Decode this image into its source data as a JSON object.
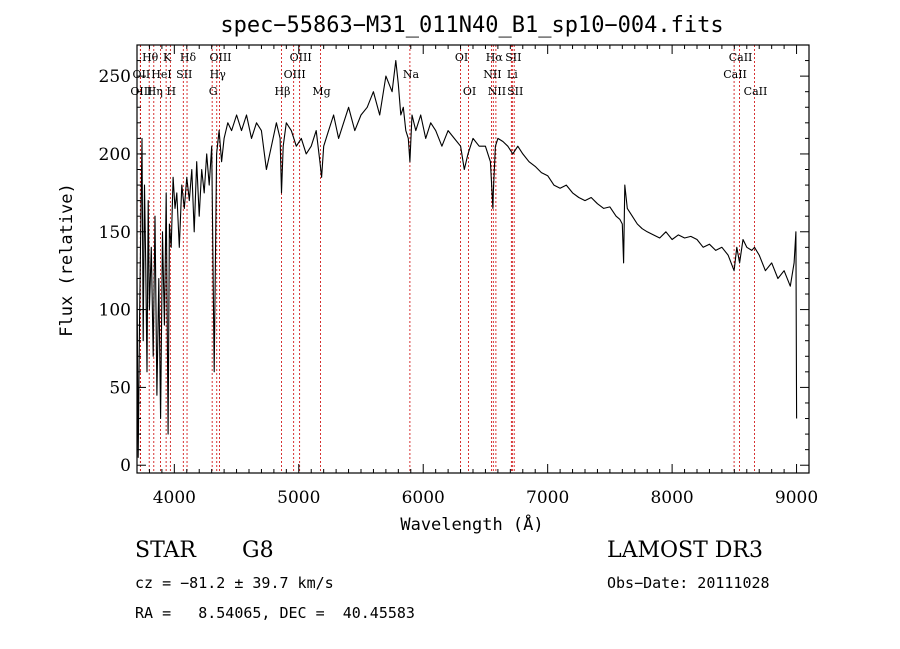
{
  "chart_data": {
    "type": "line",
    "title": "spec−55863−M31_011N40_B1_sp10−004.fits",
    "xlabel": "Wavelength (Å)",
    "ylabel": "Flux (relative)",
    "xlim": [
      3700,
      9100
    ],
    "ylim": [
      -5,
      270
    ],
    "xticks": [
      4000,
      5000,
      6000,
      7000,
      8000,
      9000
    ],
    "yticks": [
      0,
      50,
      100,
      150,
      200,
      250
    ],
    "series": [
      {
        "name": "flux",
        "x": [
          3700,
          3710,
          3720,
          3730,
          3740,
          3750,
          3760,
          3770,
          3780,
          3790,
          3800,
          3815,
          3830,
          3845,
          3860,
          3875,
          3890,
          3905,
          3920,
          3935,
          3950,
          3960,
          3975,
          3990,
          4005,
          4020,
          4040,
          4060,
          4080,
          4100,
          4120,
          4140,
          4160,
          4180,
          4200,
          4220,
          4240,
          4260,
          4280,
          4300,
          4320,
          4340,
          4360,
          4380,
          4400,
          4430,
          4460,
          4500,
          4540,
          4580,
          4620,
          4660,
          4700,
          4740,
          4780,
          4820,
          4850,
          4861,
          4875,
          4900,
          4940,
          4980,
          5020,
          5060,
          5100,
          5140,
          5170,
          5183,
          5200,
          5240,
          5280,
          5320,
          5360,
          5400,
          5450,
          5500,
          5550,
          5600,
          5650,
          5700,
          5750,
          5780,
          5800,
          5820,
          5840,
          5860,
          5880,
          5893,
          5910,
          5940,
          5980,
          6020,
          6060,
          6100,
          6150,
          6200,
          6250,
          6300,
          6330,
          6360,
          6400,
          6450,
          6500,
          6540,
          6560,
          6563,
          6580,
          6600,
          6640,
          6680,
          6720,
          6760,
          6800,
          6850,
          6900,
          6950,
          7000,
          7050,
          7100,
          7150,
          7200,
          7250,
          7300,
          7350,
          7400,
          7450,
          7500,
          7550,
          7580,
          7600,
          7610,
          7620,
          7640,
          7680,
          7720,
          7760,
          7800,
          7850,
          7900,
          7950,
          8000,
          8050,
          8100,
          8150,
          8200,
          8250,
          8300,
          8350,
          8400,
          8450,
          8498,
          8520,
          8542,
          8570,
          8600,
          8640,
          8662,
          8700,
          8750,
          8800,
          8850,
          8900,
          8950,
          8980,
          8995,
          9000
        ],
        "values": [
          120,
          5,
          90,
          150,
          210,
          80,
          180,
          130,
          60,
          170,
          100,
          140,
          70,
          160,
          45,
          120,
          30,
          150,
          90,
          175,
          20,
          155,
          140,
          185,
          165,
          175,
          140,
          180,
          165,
          185,
          170,
          190,
          150,
          195,
          160,
          190,
          175,
          200,
          180,
          205,
          60,
          200,
          215,
          195,
          210,
          220,
          215,
          225,
          215,
          225,
          210,
          220,
          215,
          190,
          205,
          220,
          210,
          175,
          205,
          220,
          215,
          205,
          210,
          200,
          205,
          215,
          195,
          185,
          205,
          215,
          225,
          210,
          220,
          230,
          215,
          225,
          230,
          240,
          225,
          250,
          240,
          260,
          245,
          225,
          230,
          215,
          210,
          195,
          225,
          215,
          225,
          210,
          220,
          215,
          205,
          215,
          210,
          205,
          190,
          200,
          210,
          205,
          205,
          195,
          165,
          175,
          205,
          210,
          208,
          205,
          200,
          205,
          200,
          195,
          192,
          188,
          186,
          180,
          178,
          180,
          175,
          172,
          170,
          172,
          168,
          165,
          166,
          160,
          158,
          155,
          130,
          180,
          165,
          160,
          155,
          152,
          150,
          148,
          146,
          150,
          145,
          148,
          146,
          147,
          145,
          140,
          142,
          138,
          140,
          135,
          125,
          140,
          130,
          145,
          140,
          138,
          140,
          135,
          125,
          130,
          120,
          125,
          115,
          130,
          150,
          30
        ]
      }
    ],
    "emission_lines": [
      {
        "label": "Hθ",
        "wl": 3798,
        "row": 0
      },
      {
        "label": "K",
        "wl": 3934,
        "row": 0
      },
      {
        "label": "Hδ",
        "wl": 4102,
        "row": 0
      },
      {
        "label": "OIII",
        "wl": 4363,
        "row": 0
      },
      {
        "label": "OIII",
        "wl": 5007,
        "row": 0
      },
      {
        "label": "OI",
        "wl": 6300,
        "row": 0
      },
      {
        "label": "Hα",
        "wl": 6563,
        "row": 0
      },
      {
        "label": "SII",
        "wl": 6716,
        "row": 0
      },
      {
        "label": "CaII",
        "wl": 8542,
        "row": 0
      },
      {
        "label": "OII",
        "wl": 3727,
        "row": 1
      },
      {
        "label": "HeI",
        "wl": 3889,
        "row": 1
      },
      {
        "label": "SII",
        "wl": 4072,
        "row": 1
      },
      {
        "label": "Hγ",
        "wl": 4341,
        "row": 1
      },
      {
        "label": "OIII",
        "wl": 4959,
        "row": 1
      },
      {
        "label": "Na",
        "wl": 5893,
        "row": 1
      },
      {
        "label": "NII",
        "wl": 6548,
        "row": 1
      },
      {
        "label": "Li",
        "wl": 6708,
        "row": 1
      },
      {
        "label": "CaII",
        "wl": 8498,
        "row": 1
      },
      {
        "label": "OIII",
        "wl": 3727,
        "row": 2
      },
      {
        "label": "Hη",
        "wl": 3835,
        "row": 2
      },
      {
        "label": "H",
        "wl": 3968,
        "row": 2
      },
      {
        "label": "G",
        "wl": 4304,
        "row": 2
      },
      {
        "label": "Hβ",
        "wl": 4861,
        "row": 2
      },
      {
        "label": "Mg",
        "wl": 5175,
        "row": 2
      },
      {
        "label": "OI",
        "wl": 6364,
        "row": 2
      },
      {
        "label": "NII",
        "wl": 6584,
        "row": 2
      },
      {
        "label": "SII",
        "wl": 6731,
        "row": 2
      },
      {
        "label": "CaII",
        "wl": 8662,
        "row": 2
      }
    ],
    "line_color": "#000000",
    "marker_color": "#cc0000"
  },
  "info": {
    "object_class": "STAR",
    "subclass": "G8",
    "survey": "LAMOST DR3",
    "redshift": "cz = −81.2 ± 39.7 km/s",
    "obs_date": "Obs−Date: 20111028",
    "coords": "RA =   8.54065, DEC =  40.45583"
  }
}
